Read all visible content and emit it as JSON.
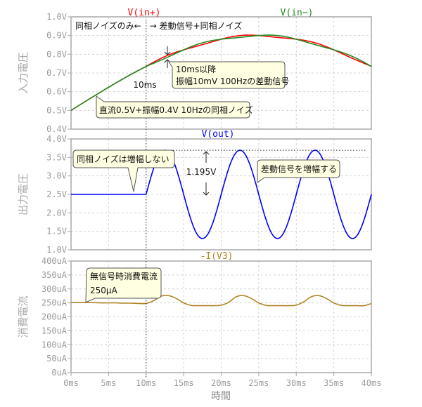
{
  "chart_data": [
    {
      "type": "line",
      "panel": "input",
      "ylabel": "入力電圧",
      "ylim": [
        0.4,
        1.0
      ],
      "yticks": [
        "1.0V",
        "0.9V",
        "0.8V",
        "0.7V",
        "0.6V",
        "0.5V",
        "0.4V"
      ],
      "ytick_values": [
        1.0,
        0.9,
        0.8,
        0.7,
        0.6,
        0.5,
        0.4
      ],
      "grid": true,
      "series": [
        {
          "name": "V(in+)",
          "color": "#ff0000",
          "offset": 0.5,
          "cm_amplitude": 0.4,
          "cm_freq_hz": 10,
          "diff_amplitude": 0.005,
          "diff_freq_hz": 100,
          "diff_start_ms": 10,
          "diff_sign": 1
        },
        {
          "name": "V(in−)",
          "color": "#228b22",
          "offset": 0.5,
          "cm_amplitude": 0.4,
          "cm_freq_hz": 10,
          "diff_amplitude": 0.005,
          "diff_freq_hz": 100,
          "diff_start_ms": 10,
          "diff_sign": -1
        }
      ]
    },
    {
      "type": "line",
      "panel": "output",
      "ylabel": "出力電圧",
      "ylim": [
        1.0,
        4.0
      ],
      "yticks": [
        "4.0V",
        "3.5V",
        "3.0V",
        "2.5V",
        "2.0V",
        "1.5V",
        "1.0V"
      ],
      "ytick_values": [
        4.0,
        3.5,
        3.0,
        2.5,
        2.0,
        1.5,
        1.0
      ],
      "grid": true,
      "series": [
        {
          "name": "V(out)",
          "color": "#0000ff",
          "offset": 2.5,
          "amplitude": 1.195,
          "freq_hz": 100,
          "start_ms": 10
        }
      ],
      "peak_line_value": 3.695
    },
    {
      "type": "line",
      "panel": "current",
      "ylabel": "消費電流",
      "ylim": [
        0,
        400
      ],
      "yticks": [
        "400uA",
        "350uA",
        "300uA",
        "250uA",
        "200uA",
        "150uA",
        "100uA",
        "50uA",
        "0uA"
      ],
      "ytick_values": [
        400,
        350,
        300,
        250,
        200,
        150,
        100,
        50,
        0
      ],
      "grid": true,
      "series": [
        {
          "name": "-I(V3)",
          "color": "#b08528",
          "x": [
            0,
            1,
            2,
            3,
            4,
            5,
            6,
            7,
            8,
            9,
            10,
            11,
            12,
            13,
            14,
            15,
            16,
            17,
            18,
            19,
            20,
            21,
            22,
            23,
            24,
            25,
            26,
            27,
            28,
            29,
            30,
            31,
            32,
            33,
            34,
            35,
            36,
            37,
            38,
            39,
            40
          ],
          "y": [
            251,
            251,
            251,
            251,
            250,
            250,
            250,
            249,
            249,
            248,
            248,
            258,
            274,
            276,
            266,
            250,
            241,
            240,
            240,
            240,
            242,
            252,
            272,
            276,
            266,
            250,
            241,
            240,
            240,
            240,
            242,
            254,
            272,
            276,
            266,
            250,
            241,
            240,
            240,
            240,
            247
          ]
        }
      ]
    }
  ],
  "x_axis": {
    "xlabel": "時間",
    "xlim": [
      0,
      40
    ],
    "ticks": [
      "0ms",
      "5ms",
      "10ms",
      "15ms",
      "20ms",
      "25ms",
      "30ms",
      "35ms",
      "40ms"
    ],
    "tick_values": [
      0,
      5,
      10,
      15,
      20,
      25,
      30,
      35,
      40
    ],
    "marker_ms": 10
  },
  "annotations": {
    "region_label": "同相ノイズのみ←　→ 差動信号+同相ノイズ",
    "marker_label": "10ms",
    "diff_note_line1": "10ms以降",
    "diff_note_line2": "振幅10mV 100Hzの差動信号",
    "cm_note": "直流0.5V+振幅0.4V 10Hzの同相ノイズ",
    "amp_value": "1.195V",
    "amplify_note": "差動信号を増幅する",
    "no_amp_note": "同相ノイズは増幅しない",
    "current_note_line1": "無信号時消費電流",
    "current_note_line2": "250μA"
  }
}
